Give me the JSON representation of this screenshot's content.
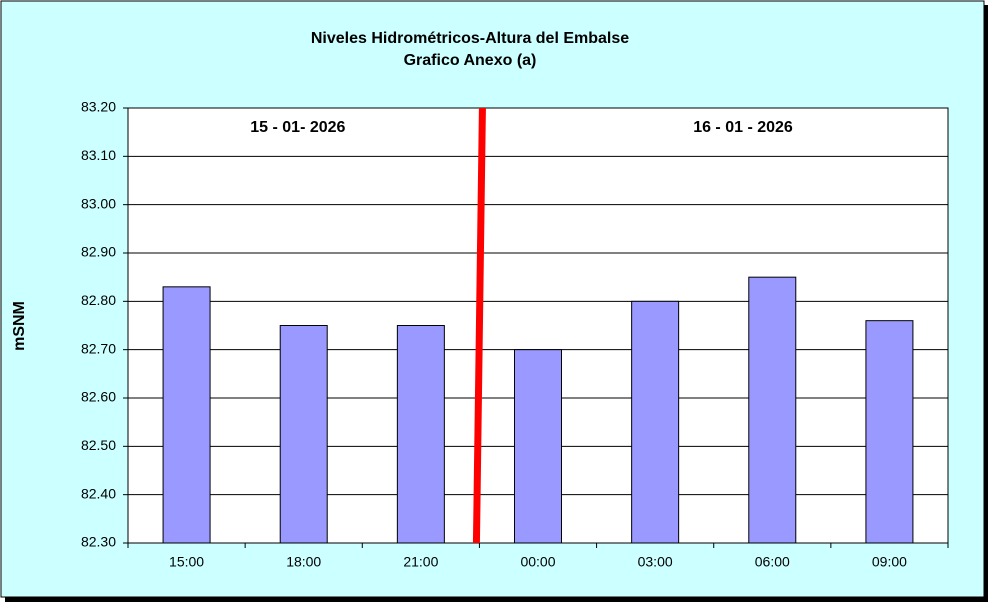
{
  "chart_data": {
    "type": "bar",
    "title": "Niveles Hidrométricos-Altura del Embalse",
    "subtitle": "Grafico Anexo (a)",
    "y_label": "mSNM",
    "annotations": [
      "15 - 01- 2026",
      "16 - 01 - 2026"
    ],
    "categories": [
      "15:00",
      "18:00",
      "21:00",
      "00:00",
      "03:00",
      "06:00",
      "09:00"
    ],
    "values": [
      82.83,
      82.75,
      82.75,
      82.7,
      82.8,
      82.85,
      82.76
    ],
    "color": "#9999ff",
    "divider_color": "#ff0000",
    "ylim": [
      82.3,
      83.2
    ],
    "yticks": [
      {
        "value": 82.3,
        "label": "82.30"
      },
      {
        "value": 82.4,
        "label": "82.40"
      },
      {
        "value": 82.5,
        "label": "82.50"
      },
      {
        "value": 82.6,
        "label": "82.60"
      },
      {
        "value": 82.7,
        "label": "82.70"
      },
      {
        "value": 82.8,
        "label": "82.80"
      },
      {
        "value": 82.9,
        "label": "82.90"
      },
      {
        "value": 83.0,
        "label": "83.00"
      },
      {
        "value": 83.1,
        "label": "83.10"
      },
      {
        "value": 83.2,
        "label": "83.20"
      }
    ],
    "grid": true
  }
}
